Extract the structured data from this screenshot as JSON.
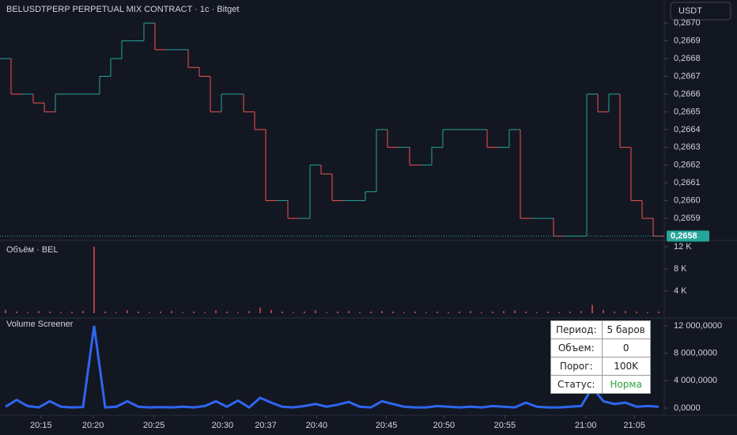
{
  "chart_data": [
    {
      "type": "step",
      "title": "BELUSDTPERP PERPETUAL MIX CONTRACT · 1с · Bitget",
      "currency": "USDT",
      "last_price_label": "0,2658",
      "up_color": "#26a69a",
      "down_color": "#ef5350",
      "x": [
        0,
        1,
        2,
        3,
        4,
        5,
        6,
        7,
        8,
        9,
        10,
        11,
        12,
        13,
        14,
        15,
        16,
        17,
        18,
        19,
        20,
        21,
        22,
        23,
        24,
        25,
        26,
        27,
        28,
        29,
        30,
        31,
        32,
        33,
        34,
        35,
        36,
        37,
        38,
        39,
        40,
        41,
        42,
        43,
        44,
        45,
        46,
        47,
        48,
        49,
        50,
        51,
        52,
        53,
        54,
        55,
        56,
        57,
        58,
        59
      ],
      "values": [
        0.2668,
        0.2666,
        0.2666,
        0.26655,
        0.2665,
        0.2666,
        0.2666,
        0.2666,
        0.2666,
        0.2667,
        0.2668,
        0.2669,
        0.2669,
        0.267,
        0.26685,
        0.26685,
        0.26685,
        0.26675,
        0.2667,
        0.2665,
        0.2666,
        0.2666,
        0.2665,
        0.2664,
        0.266,
        0.266,
        0.2659,
        0.2659,
        0.2662,
        0.26615,
        0.266,
        0.266,
        0.266,
        0.26605,
        0.2664,
        0.2663,
        0.2663,
        0.2662,
        0.2662,
        0.2663,
        0.2664,
        0.2664,
        0.2664,
        0.2664,
        0.2663,
        0.2663,
        0.2664,
        0.2659,
        0.2659,
        0.2659,
        0.2658,
        0.2658,
        0.2658,
        0.2666,
        0.2665,
        0.2666,
        0.2663,
        0.266,
        0.2659,
        0.2658
      ],
      "xlim": [
        0,
        60
      ],
      "ylim": [
        0.26578,
        0.26713
      ],
      "yticks": [
        {
          "value": 0.2659,
          "label": "0,2659"
        },
        {
          "value": 0.266,
          "label": "0,2660"
        },
        {
          "value": 0.2661,
          "label": "0,2661"
        },
        {
          "value": 0.2662,
          "label": "0,2662"
        },
        {
          "value": 0.2663,
          "label": "0,2663"
        },
        {
          "value": 0.2664,
          "label": "0,2664"
        },
        {
          "value": 0.2665,
          "label": "0,2665"
        },
        {
          "value": 0.2666,
          "label": "0,2666"
        },
        {
          "value": 0.2667,
          "label": "0,2667"
        },
        {
          "value": 0.2668,
          "label": "0,2668"
        },
        {
          "value": 0.2669,
          "label": "0,2669"
        },
        {
          "value": 0.267,
          "label": "0,2670"
        }
      ]
    },
    {
      "type": "bar",
      "title": "Объём · BEL",
      "color": "#ef5350",
      "values": [
        600,
        300,
        200,
        400,
        300,
        200,
        300,
        400,
        12000,
        300,
        200,
        500,
        300,
        200,
        300,
        400,
        200,
        300,
        200,
        500,
        300,
        200,
        400,
        1000,
        600,
        300,
        200,
        300,
        500,
        200,
        300,
        400,
        200,
        300,
        400,
        300,
        200,
        300,
        200,
        300,
        200,
        300,
        400,
        200,
        300,
        400,
        500,
        300,
        200,
        300,
        200,
        300,
        400,
        1500,
        600,
        300,
        400,
        300,
        200,
        300
      ],
      "xlim": [
        0,
        60
      ],
      "ylim": [
        0,
        13000
      ],
      "yticks": [
        {
          "value": 4000,
          "label": "4 K"
        },
        {
          "value": 8000,
          "label": "8 K"
        },
        {
          "value": 12000,
          "label": "12 K"
        }
      ]
    },
    {
      "type": "line",
      "title": "Volume Screener",
      "color": "#2e66f0",
      "values": [
        200,
        1200,
        300,
        100,
        1000,
        200,
        100,
        150,
        12000,
        100,
        200,
        1000,
        200,
        100,
        150,
        100,
        200,
        100,
        300,
        1000,
        200,
        1100,
        100,
        1500,
        800,
        200,
        100,
        300,
        600,
        200,
        500,
        900,
        200,
        100,
        1000,
        600,
        200,
        100,
        100,
        300,
        200,
        100,
        200,
        100,
        300,
        200,
        100,
        800,
        200,
        100,
        100,
        200,
        300,
        3000,
        1000,
        600,
        800,
        200,
        300,
        200
      ],
      "xlim": [
        0,
        60
      ],
      "ylim": [
        0,
        12800
      ],
      "yticks": [
        {
          "value": 0,
          "label": "0,0000"
        },
        {
          "value": 4000,
          "label": "4 000,0000"
        },
        {
          "value": 8000,
          "label": "8 000,0000"
        },
        {
          "value": 12000,
          "label": "12 000,0000"
        }
      ],
      "xticks": [
        {
          "value": 3.7,
          "label": "20:15"
        },
        {
          "value": 8.4,
          "label": "20:20"
        },
        {
          "value": 13.9,
          "label": "20:25"
        },
        {
          "value": 20.1,
          "label": "20:30"
        },
        {
          "value": 24,
          "label": "20:37"
        },
        {
          "value": 28.6,
          "label": "20:40"
        },
        {
          "value": 34.9,
          "label": "20:45"
        },
        {
          "value": 40.1,
          "label": "20:50"
        },
        {
          "value": 45.6,
          "label": "20:55"
        },
        {
          "value": 52.9,
          "label": "21:00"
        },
        {
          "value": 57.3,
          "label": "21:05"
        }
      ]
    }
  ],
  "table": {
    "rows": [
      [
        "Период:",
        "5 баров"
      ],
      [
        "Объем:",
        "0"
      ],
      [
        "Порог:",
        "100K"
      ],
      [
        "Статус:",
        "Норма"
      ]
    ]
  }
}
